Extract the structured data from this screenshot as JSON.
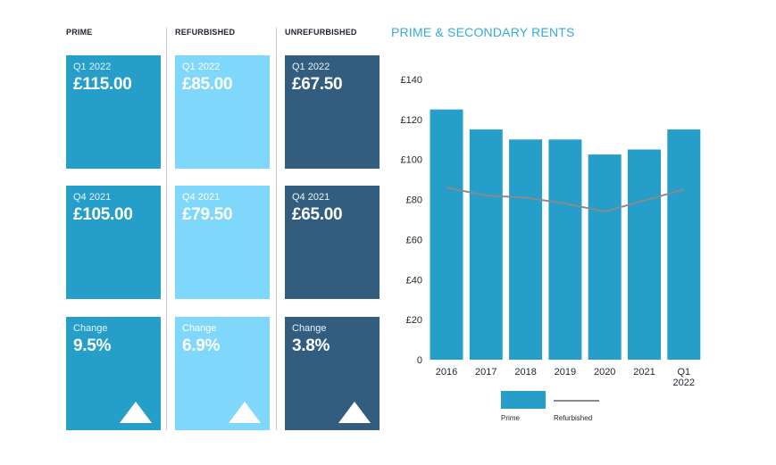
{
  "columns": [
    {
      "heading": "PRIME",
      "cards": [
        {
          "label": "Q1 2022",
          "value": "£115.00"
        },
        {
          "label": "Q4 2021",
          "value": "£105.00"
        },
        {
          "label": "Change",
          "value": "9.5%",
          "trend": "up-triangle-icon"
        }
      ]
    },
    {
      "heading": "REFURBISHED",
      "cards": [
        {
          "label": "Q1 2022",
          "value": "£85.00"
        },
        {
          "label": "Q4 2021",
          "value": "£79.50"
        },
        {
          "label": "Change",
          "value": "6.9%",
          "trend": "up-triangle-icon"
        }
      ]
    },
    {
      "heading": "UNREFURBISHED",
      "cards": [
        {
          "label": "Q1 2022",
          "value": "£67.50"
        },
        {
          "label": "Q4 2021",
          "value": "£65.00"
        },
        {
          "label": "Change",
          "value": "3.8%",
          "trend": "up-triangle-icon"
        }
      ]
    }
  ],
  "colors": {
    "prime": "#259ec9",
    "refurbished_card": "#7fd8fb",
    "unrefurbished": "#335d7e",
    "refurbished_line": "#8a8a8a",
    "title": "#36a9d6"
  },
  "chart_data": {
    "type": "bar",
    "title": "PRIME & SECONDARY RENTS",
    "categories": [
      "2016",
      "2017",
      "2018",
      "2019",
      "2020",
      "2021",
      "Q1 2022"
    ],
    "series": [
      {
        "name": "Prime",
        "type": "bar",
        "values": [
          125,
          115,
          110,
          110,
          102.5,
          105,
          115
        ]
      },
      {
        "name": "Refurbished",
        "type": "line",
        "values": [
          86,
          82,
          81,
          78,
          74,
          79.5,
          85
        ]
      }
    ],
    "y_ticks": [
      "£140",
      "£120",
      "£100",
      "£80",
      "£60",
      "£40",
      "£20",
      "0"
    ],
    "ylim": [
      0,
      140
    ],
    "grid": false,
    "legend_position": "bottom"
  }
}
